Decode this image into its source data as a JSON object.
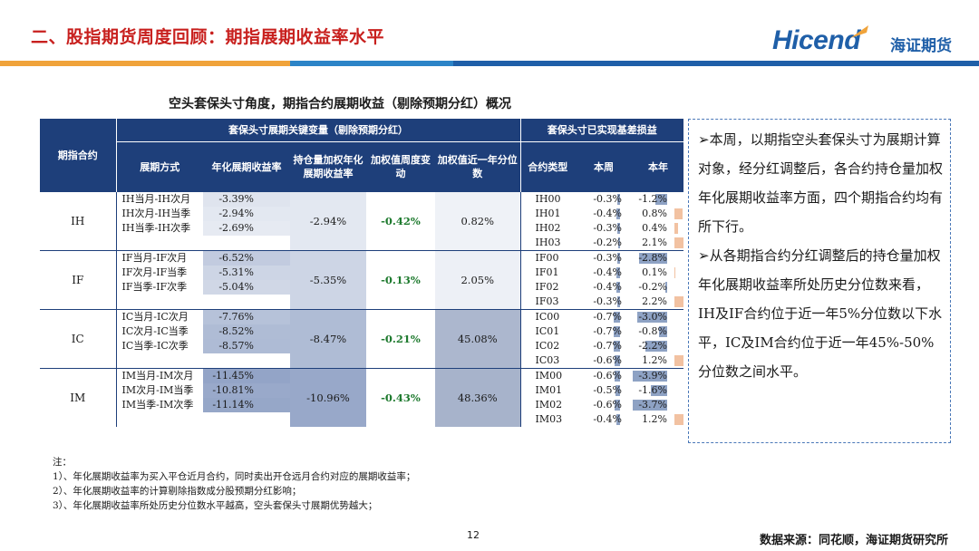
{
  "header": {
    "title": "二、股指期货周度回顾：期指展期收益率水平"
  },
  "logo": {
    "brand": "Hicend",
    "cn": "海证期货"
  },
  "colors": {
    "title_red": "#c8201e",
    "navy": "#1e3f7a",
    "brand_blue": "#1f5fa8",
    "accent_orange": "#f0a33a",
    "green": "#1e7a2e"
  },
  "table": {
    "title": "空头套保头寸角度，期指合约展期收益（剔除预期分红）概况",
    "header": {
      "contract": "期指合约",
      "group1": "套保头寸展期关键变量（剔除预期分红）",
      "group2": "套保头寸已实现基差损益",
      "cols": [
        "展期方式",
        "年化展期收益率",
        "持仓量加权年化展期收益率",
        "加权值周度变动",
        "加权值近一年分位数",
        "合约类型",
        "本周",
        "本年"
      ]
    },
    "groups": [
      {
        "contract": "IH",
        "weighted": "-2.94%",
        "change": "-0.42%",
        "pct": "0.82%",
        "rates": [
          {
            "name": "IH当月-IH次月",
            "value": "-3.39%"
          },
          {
            "name": "IH次月-IH当季",
            "value": "-2.94%"
          },
          {
            "name": "IH当季-IH次季",
            "value": "-2.69%"
          }
        ],
        "basis": [
          {
            "type": "IH00",
            "week": "-0.3%",
            "year": "-1.2%"
          },
          {
            "type": "IH01",
            "week": "-0.4%",
            "year": "0.8%"
          },
          {
            "type": "IH02",
            "week": "-0.3%",
            "year": "0.4%"
          },
          {
            "type": "IH03",
            "week": "-0.2%",
            "year": "2.1%"
          }
        ]
      },
      {
        "contract": "IF",
        "weighted": "-5.35%",
        "change": "-0.13%",
        "pct": "2.05%",
        "rates": [
          {
            "name": "IF当月-IF次月",
            "value": "-6.52%"
          },
          {
            "name": "IF次月-IF当季",
            "value": "-5.31%"
          },
          {
            "name": "IF当季-IF次季",
            "value": "-5.04%"
          }
        ],
        "basis": [
          {
            "type": "IF00",
            "week": "-0.3%",
            "year": "-2.8%"
          },
          {
            "type": "IF01",
            "week": "-0.4%",
            "year": "0.1%"
          },
          {
            "type": "IF02",
            "week": "-0.4%",
            "year": "-0.2%"
          },
          {
            "type": "IF03",
            "week": "-0.3%",
            "year": "2.2%"
          }
        ]
      },
      {
        "contract": "IC",
        "weighted": "-8.47%",
        "change": "-0.21%",
        "pct": "45.08%",
        "rates": [
          {
            "name": "IC当月-IC次月",
            "value": "-7.76%"
          },
          {
            "name": "IC次月-IC当季",
            "value": "-8.52%"
          },
          {
            "name": "IC当季-IC次季",
            "value": "-8.57%"
          }
        ],
        "basis": [
          {
            "type": "IC00",
            "week": "-0.7%",
            "year": "-3.0%"
          },
          {
            "type": "IC01",
            "week": "-0.7%",
            "year": "-0.8%"
          },
          {
            "type": "IC02",
            "week": "-0.7%",
            "year": "-2.2%"
          },
          {
            "type": "IC03",
            "week": "-0.6%",
            "year": "1.2%"
          }
        ]
      },
      {
        "contract": "IM",
        "weighted": "-10.96%",
        "change": "-0.43%",
        "pct": "48.36%",
        "rates": [
          {
            "name": "IM当月-IM次月",
            "value": "-11.45%"
          },
          {
            "name": "IM次月-IM当季",
            "value": "-10.81%"
          },
          {
            "name": "IM当季-IM次季",
            "value": "-11.14%"
          }
        ],
        "basis": [
          {
            "type": "IM00",
            "week": "-0.6%",
            "year": "-3.9%"
          },
          {
            "type": "IM01",
            "week": "-0.5%",
            "year": "-1.6%"
          },
          {
            "type": "IM02",
            "week": "-0.6%",
            "year": "-3.7%"
          },
          {
            "type": "IM03",
            "week": "-0.4%",
            "year": "1.2%"
          }
        ]
      }
    ]
  },
  "notes": {
    "head": "注：",
    "lines": [
      "1）、年化展期收益率为买入平仓近月合约，同时卖出开仓远月合约对应的展期收益率；",
      "2）、年化展期收益率的计算剔除指数成分股预期分红影响；",
      "3）、年化展期收益率所处历史分位数水平越高，空头套保头寸展期优势越大；"
    ]
  },
  "sidebar": {
    "p1": "➢本周，以期指空头套保头寸为展期计算对象，经分红调整后，各合约持仓量加权年化展期收益率方面，四个期指合约均有所下行。",
    "p2": "➢从各期指合约分红调整后的持仓量加权年化展期收益率所处历史分位数来看，IH及IF合约位于近一年5%分位数以下水平，IC及IM合约位于近一年45%-50%分位数之间水平。"
  },
  "footer": {
    "page": "12",
    "source": "数据来源：同花顺，海证期货研究所"
  }
}
